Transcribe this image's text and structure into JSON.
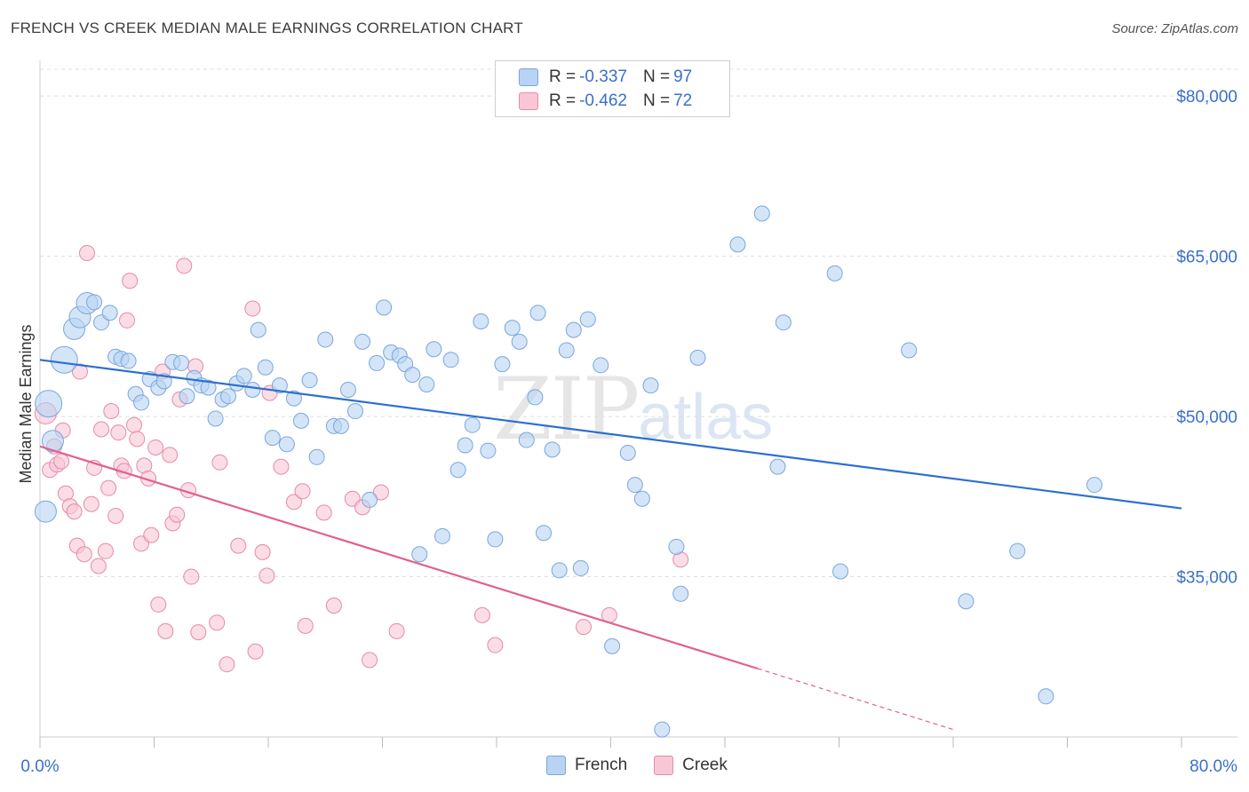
{
  "header": {
    "title": "FRENCH VS CREEK MEDIAN MALE EARNINGS CORRELATION CHART",
    "source": "Source: ZipAtlas.com"
  },
  "watermark": {
    "zip": "ZIP",
    "atlas": "atlas"
  },
  "legend": {
    "rows": [
      {
        "r_label": "R =",
        "r_value": "-0.337",
        "n_label": "N =",
        "n_value": "97"
      },
      {
        "r_label": "R =",
        "r_value": "-0.462",
        "n_label": "N =",
        "n_value": "72"
      }
    ],
    "bottom": [
      "French",
      "Creek"
    ]
  },
  "colors": {
    "french_fill": "#b8d3f3",
    "french_stroke": "#7aa6dc",
    "french_line": "#2e6fd0",
    "creek_fill": "#f8c7d6",
    "creek_stroke": "#e58aa9",
    "creek_line": "#e0608f",
    "tick_text": "#3a6fc9",
    "grid": "#dedede"
  },
  "chart_data": {
    "type": "scatter",
    "xlabel": "",
    "ylabel": "Median Male Earnings",
    "xlim": [
      0,
      80
    ],
    "ylim": [
      20000,
      84000
    ],
    "x_tick_labels": [
      "0.0%",
      "80.0%"
    ],
    "y_ticks": [
      35000,
      50000,
      65000,
      80000
    ],
    "y_tick_labels": [
      "$35,000",
      "$50,000",
      "$65,000",
      "$80,000"
    ],
    "grid": true,
    "legend_position": "top-center",
    "series": [
      {
        "name": "French",
        "trend": {
          "x": [
            0,
            80
          ],
          "y": [
            55300,
            41400
          ]
        },
        "points": [
          [
            0.4,
            41100,
            2
          ],
          [
            0.6,
            51200,
            3
          ],
          [
            0.9,
            47700,
            2
          ],
          [
            1.7,
            55300,
            3
          ],
          [
            2.4,
            58200,
            2
          ],
          [
            2.8,
            59300,
            2
          ],
          [
            3.3,
            60600,
            2
          ],
          [
            3.8,
            60700,
            1
          ],
          [
            4.3,
            58800,
            1
          ],
          [
            4.9,
            59700,
            1
          ],
          [
            5.3,
            55600,
            1
          ],
          [
            5.7,
            55400,
            1
          ],
          [
            6.2,
            55200,
            1
          ],
          [
            6.7,
            52100,
            1
          ],
          [
            7.1,
            51300,
            1
          ],
          [
            7.7,
            53500,
            1
          ],
          [
            8.3,
            52700,
            1
          ],
          [
            8.7,
            53300,
            1
          ],
          [
            9.3,
            55100,
            1
          ],
          [
            9.9,
            55000,
            1
          ],
          [
            10.3,
            51900,
            1
          ],
          [
            10.8,
            53600,
            1
          ],
          [
            11.3,
            52900,
            1
          ],
          [
            11.8,
            52700,
            1
          ],
          [
            12.3,
            49800,
            1
          ],
          [
            12.8,
            51600,
            1
          ],
          [
            13.2,
            51900,
            1
          ],
          [
            13.8,
            53100,
            1
          ],
          [
            14.3,
            53800,
            1
          ],
          [
            14.9,
            52500,
            1
          ],
          [
            15.3,
            58100,
            1
          ],
          [
            15.8,
            54600,
            1
          ],
          [
            16.3,
            48000,
            1
          ],
          [
            16.8,
            52900,
            1
          ],
          [
            17.3,
            47400,
            1
          ],
          [
            17.8,
            51700,
            1
          ],
          [
            18.3,
            49600,
            1
          ],
          [
            18.9,
            53400,
            1
          ],
          [
            19.4,
            46200,
            1
          ],
          [
            20.0,
            57200,
            1
          ],
          [
            20.6,
            49100,
            1
          ],
          [
            21.1,
            49100,
            1
          ],
          [
            21.6,
            52500,
            1
          ],
          [
            22.1,
            50500,
            1
          ],
          [
            22.6,
            57000,
            1
          ],
          [
            23.1,
            42200,
            1
          ],
          [
            23.6,
            55000,
            1
          ],
          [
            24.1,
            60200,
            1
          ],
          [
            24.6,
            56000,
            1
          ],
          [
            25.2,
            55700,
            1
          ],
          [
            25.6,
            54900,
            1
          ],
          [
            26.1,
            53900,
            1
          ],
          [
            26.6,
            37100,
            1
          ],
          [
            27.1,
            53000,
            1
          ],
          [
            27.6,
            56300,
            1
          ],
          [
            28.2,
            38800,
            1
          ],
          [
            28.8,
            55300,
            1
          ],
          [
            29.3,
            45000,
            1
          ],
          [
            29.8,
            47300,
            1
          ],
          [
            30.3,
            49200,
            1
          ],
          [
            30.9,
            58900,
            1
          ],
          [
            31.4,
            46800,
            1
          ],
          [
            31.9,
            38500,
            1
          ],
          [
            32.4,
            54900,
            1
          ],
          [
            33.1,
            58300,
            1
          ],
          [
            33.6,
            57000,
            1
          ],
          [
            34.1,
            47800,
            1
          ],
          [
            34.7,
            51800,
            1
          ],
          [
            34.9,
            59700,
            1
          ],
          [
            35.3,
            39100,
            1
          ],
          [
            35.9,
            46900,
            1
          ],
          [
            36.4,
            35600,
            1
          ],
          [
            36.9,
            56200,
            1
          ],
          [
            37.4,
            58100,
            1
          ],
          [
            37.9,
            35800,
            1
          ],
          [
            38.4,
            59100,
            1
          ],
          [
            39.3,
            54800,
            1
          ],
          [
            40.1,
            28500,
            1
          ],
          [
            41.2,
            46600,
            1
          ],
          [
            41.7,
            43600,
            1
          ],
          [
            42.2,
            42300,
            1
          ],
          [
            42.8,
            52900,
            1
          ],
          [
            43.6,
            20700,
            1
          ],
          [
            44.6,
            37800,
            1
          ],
          [
            44.9,
            33400,
            1
          ],
          [
            46.1,
            55500,
            1
          ],
          [
            48.9,
            66100,
            1
          ],
          [
            50.6,
            69000,
            1
          ],
          [
            51.7,
            45300,
            1
          ],
          [
            52.1,
            58800,
            1
          ],
          [
            55.7,
            63400,
            1
          ],
          [
            56.1,
            35500,
            1
          ],
          [
            60.9,
            56200,
            1
          ],
          [
            64.9,
            32700,
            1
          ],
          [
            68.5,
            37400,
            1
          ],
          [
            70.5,
            23800,
            1
          ],
          [
            73.9,
            43600,
            1
          ]
        ]
      },
      {
        "name": "Creek",
        "trend": {
          "x": [
            0,
            50.3
          ],
          "y": [
            47200,
            26400
          ]
        },
        "trend_dashed": {
          "x": [
            50.3,
            64
          ],
          "y": [
            26400,
            20700
          ]
        },
        "points": [
          [
            0.4,
            50300,
            2
          ],
          [
            0.7,
            45000,
            1
          ],
          [
            1.0,
            47200,
            1
          ],
          [
            1.2,
            45500,
            1
          ],
          [
            1.5,
            45800,
            1
          ],
          [
            1.6,
            48700,
            1
          ],
          [
            1.8,
            42800,
            1
          ],
          [
            2.1,
            41600,
            1
          ],
          [
            2.4,
            41100,
            1
          ],
          [
            2.6,
            37900,
            1
          ],
          [
            2.8,
            54200,
            1
          ],
          [
            3.1,
            37100,
            1
          ],
          [
            3.3,
            65300,
            1
          ],
          [
            3.6,
            41800,
            1
          ],
          [
            3.8,
            45200,
            1
          ],
          [
            4.1,
            36000,
            1
          ],
          [
            4.3,
            48800,
            1
          ],
          [
            4.6,
            37400,
            1
          ],
          [
            4.8,
            43300,
            1
          ],
          [
            5.0,
            50500,
            1
          ],
          [
            5.3,
            40700,
            1
          ],
          [
            5.5,
            48500,
            1
          ],
          [
            5.7,
            45400,
            1
          ],
          [
            5.9,
            44900,
            1
          ],
          [
            6.1,
            59000,
            1
          ],
          [
            6.3,
            62700,
            1
          ],
          [
            6.6,
            49200,
            1
          ],
          [
            6.8,
            47900,
            1
          ],
          [
            7.1,
            38100,
            1
          ],
          [
            7.3,
            45400,
            1
          ],
          [
            7.6,
            44200,
            1
          ],
          [
            7.8,
            38900,
            1
          ],
          [
            8.1,
            47100,
            1
          ],
          [
            8.3,
            32400,
            1
          ],
          [
            8.6,
            54200,
            1
          ],
          [
            8.8,
            29900,
            1
          ],
          [
            9.1,
            46400,
            1
          ],
          [
            9.3,
            40000,
            1
          ],
          [
            9.6,
            40800,
            1
          ],
          [
            9.8,
            51600,
            1
          ],
          [
            10.1,
            64100,
            1
          ],
          [
            10.4,
            43100,
            1
          ],
          [
            10.6,
            35000,
            1
          ],
          [
            10.9,
            54700,
            1
          ],
          [
            11.1,
            29800,
            1
          ],
          [
            12.4,
            30700,
            1
          ],
          [
            12.6,
            45700,
            1
          ],
          [
            13.1,
            26800,
            1
          ],
          [
            13.9,
            37900,
            1
          ],
          [
            14.9,
            60100,
            1
          ],
          [
            15.1,
            28000,
            1
          ],
          [
            15.6,
            37300,
            1
          ],
          [
            15.9,
            35100,
            1
          ],
          [
            16.1,
            52200,
            1
          ],
          [
            16.9,
            45300,
            1
          ],
          [
            17.8,
            42000,
            1
          ],
          [
            18.4,
            43000,
            1
          ],
          [
            18.6,
            30400,
            1
          ],
          [
            19.9,
            41000,
            1
          ],
          [
            20.6,
            32300,
            1
          ],
          [
            21.9,
            42300,
            1
          ],
          [
            22.6,
            41500,
            1
          ],
          [
            23.1,
            27200,
            1
          ],
          [
            23.9,
            42900,
            1
          ],
          [
            25.0,
            29900,
            1
          ],
          [
            31.0,
            31400,
            1
          ],
          [
            31.9,
            28600,
            1
          ],
          [
            38.1,
            30300,
            1
          ],
          [
            39.9,
            31400,
            1
          ],
          [
            44.9,
            36600,
            1
          ]
        ]
      }
    ]
  }
}
